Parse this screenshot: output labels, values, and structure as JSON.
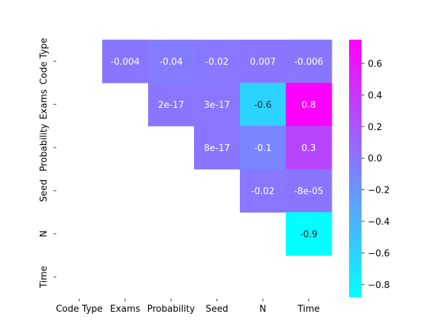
{
  "chart_data": {
    "type": "heatmap",
    "labels": [
      "Code Type",
      "Exams",
      "Probability",
      "Seed",
      "N",
      "Time"
    ],
    "cells": [
      {
        "row": "Code Type",
        "col": "Exams",
        "value": -0.004,
        "label": "-0.004"
      },
      {
        "row": "Code Type",
        "col": "Probability",
        "value": -0.04,
        "label": "-0.04"
      },
      {
        "row": "Code Type",
        "col": "Seed",
        "value": -0.02,
        "label": "-0.02"
      },
      {
        "row": "Code Type",
        "col": "N",
        "value": 0.007,
        "label": "0.007"
      },
      {
        "row": "Code Type",
        "col": "Time",
        "value": -0.006,
        "label": "-0.006"
      },
      {
        "row": "Exams",
        "col": "Probability",
        "value": 2e-17,
        "label": "2e-17"
      },
      {
        "row": "Exams",
        "col": "Seed",
        "value": 3e-17,
        "label": "3e-17"
      },
      {
        "row": "Exams",
        "col": "N",
        "value": -0.6,
        "label": "-0.6"
      },
      {
        "row": "Exams",
        "col": "Time",
        "value": 0.75,
        "label": "0.8"
      },
      {
        "row": "Probability",
        "col": "Seed",
        "value": 8e-17,
        "label": "8e-17"
      },
      {
        "row": "Probability",
        "col": "N",
        "value": -0.1,
        "label": "-0.1"
      },
      {
        "row": "Probability",
        "col": "Time",
        "value": 0.3,
        "label": "0.3"
      },
      {
        "row": "Seed",
        "col": "N",
        "value": -0.02,
        "label": "-0.02"
      },
      {
        "row": "Seed",
        "col": "Time",
        "value": -8e-05,
        "label": "-8e-05"
      },
      {
        "row": "N",
        "col": "Time",
        "value": -0.88,
        "label": "-0.9"
      }
    ],
    "colormap": "cool",
    "vmin": -0.88,
    "vmax": 0.75,
    "colorbar_ticks": [
      0.6,
      0.4,
      0.2,
      0.0,
      -0.2,
      -0.4,
      -0.6,
      -0.8
    ],
    "colorbar_tick_labels": [
      "0.6",
      "0.4",
      "0.2",
      "0.0",
      "−0.2",
      "−0.4",
      "−0.6",
      "−0.8"
    ],
    "title": "",
    "xlabel": "",
    "ylabel": ""
  }
}
